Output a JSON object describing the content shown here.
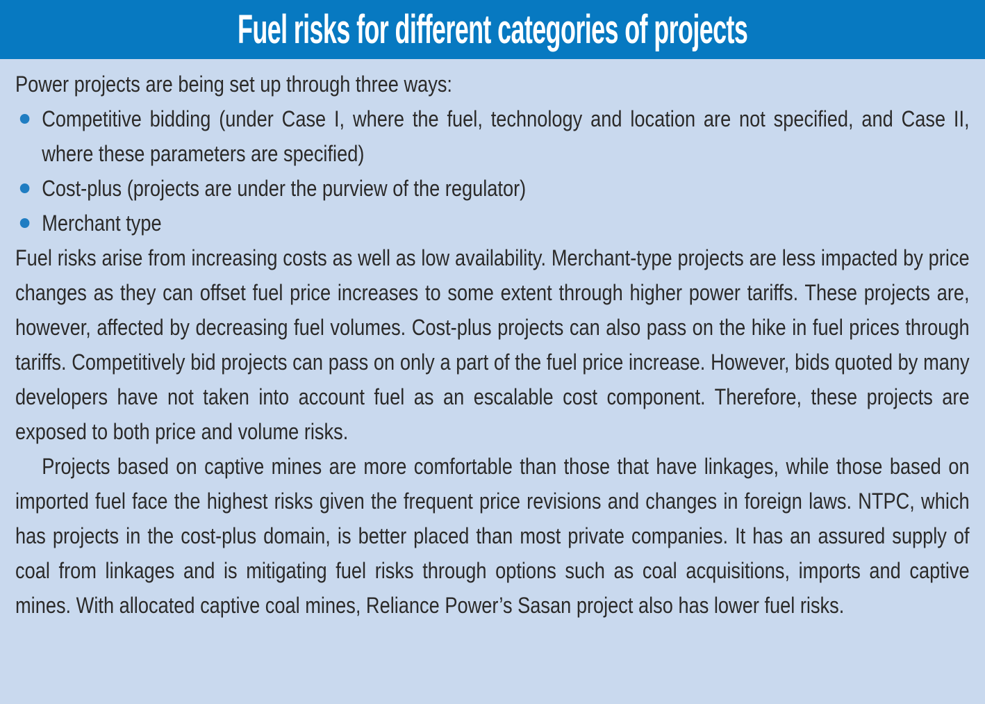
{
  "panel": {
    "title": "Fuel risks for different categories of projects",
    "intro": "Power projects are being set up through three ways:",
    "bullets": [
      "Competitive bidding (under Case I, where the fuel, technology and location are not specified, and Case II, where these parameters are specified)",
      "Cost-plus (projects are under the purview of the regulator)",
      "Merchant type"
    ],
    "paragraphs": [
      "Fuel risks arise from increasing costs as well as low availability. Merchant-type projects are less impacted by price changes as they can offset fuel price increases to some extent through higher power tariffs. These projects are, however, affected by decreasing fuel volumes. Cost-plus projects can also pass on the hike in fuel prices through tariffs. Competitively bid projects can pass on only a part of the fuel price increase. However, bids quoted by many developers have not taken into account fuel as an escalable cost component. Therefore, these projects are exposed to both price and volume risks.",
      "Projects based on captive mines are more comfortable than those that have linkages, while those based on imported fuel face the highest risks given the frequent price revisions and changes in foreign laws. NTPC, which has projects in the cost-plus domain, is better placed than most private companies. It has an assured supply of coal from linkages and is mitigating fuel risks through options such as coal acquisitions, imports and captive mines. With allocated captive coal mines, Reliance Power’s Sasan project also has lower fuel risks."
    ],
    "colors": {
      "header_bg": "#0779C1",
      "body_bg": "#C9D9EE",
      "text": "#2B2A29",
      "bullet": "#1F7DC2",
      "title_text": "#FFFFFF"
    }
  }
}
